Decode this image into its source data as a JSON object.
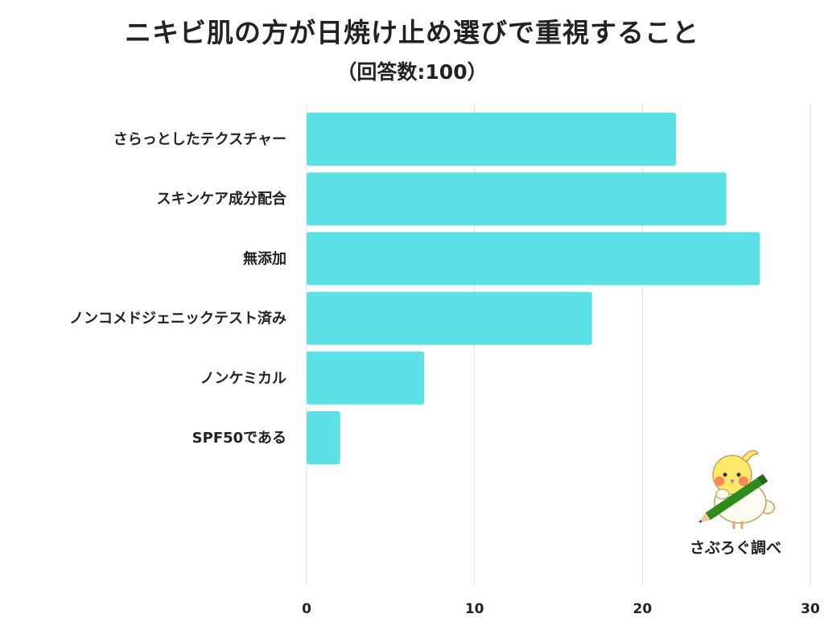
{
  "chart_data": {
    "type": "bar",
    "orientation": "horizontal",
    "title": "ニキビ肌の方が日焼け止め選びで重視すること",
    "subtitle": "（回答数:100）",
    "categories": [
      "さらっとしたテクスチャー",
      "スキンケア成分配合",
      "無添加",
      "ノンコメドジェニックテスト済み",
      "ノンケミカル",
      "SPF50である"
    ],
    "values": [
      22,
      25,
      27,
      17,
      7,
      2
    ],
    "xlim": [
      0,
      30
    ],
    "xticks": [
      "0",
      "10",
      "20",
      "30"
    ],
    "xlabel": "",
    "ylabel": "",
    "grid": true,
    "bar_color": "#5ce1e6"
  },
  "brand": {
    "text": "さぶろぐ調べ"
  }
}
